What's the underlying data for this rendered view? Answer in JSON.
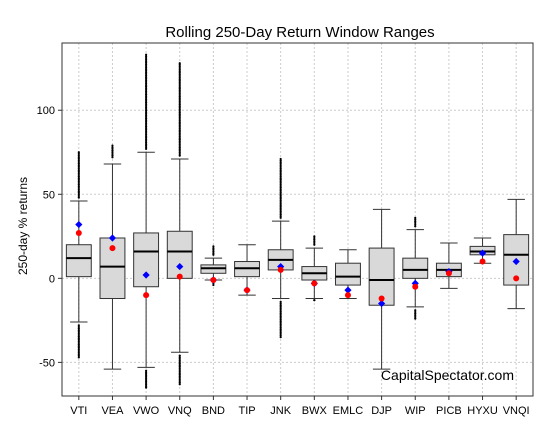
{
  "chart_data": {
    "type": "boxplot",
    "title": "Rolling 250-Day Return Window Ranges",
    "xlabel": "",
    "ylabel": "250-day % returns",
    "ylim": [
      -70,
      140
    ],
    "yticks": [
      -50,
      0,
      50,
      100
    ],
    "grid": true,
    "watermark": "CapitalSpectator.com",
    "colors": {
      "box_fill": "#d9d9d9",
      "box_stroke": "#333333",
      "median": "#000000",
      "blue_marker": "#0000ff",
      "red_marker": "#ff0000",
      "grid": "#cccccc",
      "outlier": "#000000"
    },
    "categories": [
      "VTI",
      "VEA",
      "VWO",
      "VNQ",
      "BND",
      "TIP",
      "JNK",
      "BWX",
      "EMLC",
      "DJP",
      "WIP",
      "PICB",
      "HYXU",
      "VNQI"
    ],
    "boxes": [
      {
        "q1": 1,
        "median": 12,
        "q3": 20,
        "whisker_low": -26,
        "whisker_high": 46,
        "out_low": [
          -28,
          -47
        ],
        "out_high": [
          48,
          75
        ],
        "blue": 32,
        "red": 27
      },
      {
        "q1": -12,
        "median": 7,
        "q3": 24,
        "whisker_low": -54,
        "whisker_high": 68,
        "out_low": [],
        "out_high": [
          72,
          79
        ],
        "blue": 24,
        "red": 18
      },
      {
        "q1": -5,
        "median": 16,
        "q3": 27,
        "whisker_low": -53,
        "whisker_high": 75,
        "out_low": [
          -55,
          -65
        ],
        "out_high": [
          77,
          133
        ],
        "blue": 2,
        "red": -10
      },
      {
        "q1": 0,
        "median": 16,
        "q3": 28,
        "whisker_low": -44,
        "whisker_high": 71,
        "out_low": [
          -46,
          -63
        ],
        "out_high": [
          73,
          128
        ],
        "blue": 7,
        "red": 1
      },
      {
        "q1": 3,
        "median": 6,
        "q3": 8,
        "whisker_low": -1,
        "whisker_high": 12,
        "out_low": [
          -3,
          -4
        ],
        "out_high": [
          14,
          19
        ],
        "blue": -1,
        "red": -1
      },
      {
        "q1": 1,
        "median": 6,
        "q3": 10,
        "whisker_low": -10,
        "whisker_high": 20,
        "out_low": [],
        "out_high": [],
        "blue": -7,
        "red": -7
      },
      {
        "q1": 5,
        "median": 11,
        "q3": 17,
        "whisker_low": -12,
        "whisker_high": 34,
        "out_low": [
          -14,
          -35
        ],
        "out_high": [
          36,
          71
        ],
        "blue": 7,
        "red": 5
      },
      {
        "q1": -1,
        "median": 3,
        "q3": 7,
        "whisker_low": -12,
        "whisker_high": 18,
        "out_low": [
          -13
        ],
        "out_high": [
          20,
          25
        ],
        "blue": -3,
        "red": -3
      },
      {
        "q1": -4,
        "median": 1,
        "q3": 9,
        "whisker_low": -12,
        "whisker_high": 17,
        "out_low": [],
        "out_high": [],
        "blue": -7,
        "red": -10
      },
      {
        "q1": -16,
        "median": -1,
        "q3": 18,
        "whisker_low": -54,
        "whisker_high": 41,
        "out_low": [],
        "out_high": [],
        "blue": -15,
        "red": -12
      },
      {
        "q1": 0,
        "median": 5,
        "q3": 12,
        "whisker_low": -17,
        "whisker_high": 29,
        "out_low": [
          -19,
          -24
        ],
        "out_high": [
          31,
          36
        ],
        "blue": -3,
        "red": -5
      },
      {
        "q1": 1,
        "median": 5,
        "q3": 9,
        "whisker_low": -6,
        "whisker_high": 21,
        "out_low": [],
        "out_high": [],
        "blue": 4,
        "red": 3
      },
      {
        "q1": 14,
        "median": 16,
        "q3": 19,
        "whisker_low": 9,
        "whisker_high": 24,
        "out_low": [],
        "out_high": [],
        "blue": 15,
        "red": 10
      },
      {
        "q1": -4,
        "median": 14,
        "q3": 26,
        "whisker_low": -18,
        "whisker_high": 47,
        "out_low": [],
        "out_high": [],
        "blue": 10,
        "red": 0
      }
    ]
  }
}
